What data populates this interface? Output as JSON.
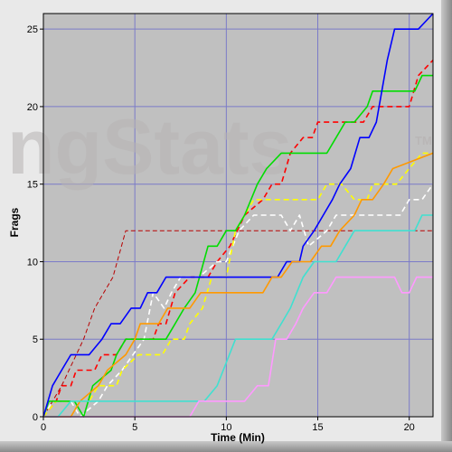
{
  "chart_data": {
    "type": "line",
    "watermark": "ngStats",
    "watermark_tm": "TM",
    "xlabel": "Time (Min)",
    "ylabel": "Frags",
    "xlim": [
      0,
      21.3
    ],
    "ylim": [
      0,
      26
    ],
    "xticks": [
      0,
      5,
      10,
      15,
      20
    ],
    "yticks": [
      0,
      5,
      10,
      15,
      20,
      25
    ],
    "grid": true,
    "background": "#c0c0c0",
    "grid_color": "#7b7bc8",
    "series": [
      {
        "color": "#ff0000",
        "dashed": true,
        "points": [
          [
            0,
            0
          ],
          [
            0.7,
            1
          ],
          [
            1,
            2
          ],
          [
            1.5,
            2
          ],
          [
            1.8,
            3
          ],
          [
            2.8,
            3
          ],
          [
            3.2,
            4
          ],
          [
            4,
            4
          ],
          [
            4.5,
            5
          ],
          [
            6,
            5
          ],
          [
            6.3,
            6
          ],
          [
            6.7,
            6
          ],
          [
            7.2,
            8
          ],
          [
            8,
            9
          ],
          [
            9,
            9
          ],
          [
            9.5,
            10
          ],
          [
            10.2,
            11
          ],
          [
            11,
            13
          ],
          [
            12,
            14
          ],
          [
            12.5,
            15
          ],
          [
            13,
            15
          ],
          [
            13.5,
            17
          ],
          [
            14.2,
            18
          ],
          [
            14.7,
            18
          ],
          [
            15,
            19
          ],
          [
            17.5,
            19
          ],
          [
            18,
            20
          ],
          [
            20,
            20
          ],
          [
            20.5,
            22
          ],
          [
            21.3,
            23
          ]
        ]
      },
      {
        "color": "#b80000",
        "dashed": true,
        "thin": true,
        "points": [
          [
            0,
            0
          ],
          [
            0.5,
            1
          ],
          [
            1,
            2
          ],
          [
            2.2,
            5
          ],
          [
            2.8,
            7
          ],
          [
            3.8,
            9
          ],
          [
            4.5,
            12
          ],
          [
            21.3,
            12
          ]
        ]
      },
      {
        "color": "#ffffff",
        "dashed": true,
        "points": [
          [
            0,
            0
          ],
          [
            0.5,
            1
          ],
          [
            1.5,
            1
          ],
          [
            2,
            0
          ],
          [
            3,
            1
          ],
          [
            3.5,
            2
          ],
          [
            4.3,
            3
          ],
          [
            5.5,
            5
          ],
          [
            6,
            8
          ],
          [
            6.6,
            7
          ],
          [
            7,
            8
          ],
          [
            7.5,
            9
          ],
          [
            8.5,
            9
          ],
          [
            9.5,
            10
          ],
          [
            10,
            10
          ],
          [
            10.7,
            12
          ],
          [
            11.5,
            13
          ],
          [
            13,
            13
          ],
          [
            13.5,
            12
          ],
          [
            14,
            13
          ],
          [
            14.5,
            11
          ],
          [
            15.5,
            12
          ],
          [
            16,
            13
          ],
          [
            17,
            13
          ],
          [
            19.5,
            13
          ],
          [
            20,
            14
          ],
          [
            20.7,
            14
          ],
          [
            21.3,
            15
          ]
        ]
      },
      {
        "color": "#ffff00",
        "dashed": true,
        "points": [
          [
            0,
            0
          ],
          [
            0.7,
            1
          ],
          [
            1.7,
            1
          ],
          [
            2.5,
            1
          ],
          [
            3,
            2
          ],
          [
            4,
            2
          ],
          [
            4.3,
            3
          ],
          [
            5.2,
            4
          ],
          [
            6.5,
            4
          ],
          [
            7,
            5
          ],
          [
            7.7,
            5
          ],
          [
            8,
            6
          ],
          [
            8.7,
            7
          ],
          [
            9.2,
            9
          ],
          [
            10,
            9
          ],
          [
            10.5,
            12
          ],
          [
            11,
            13
          ],
          [
            11.5,
            14
          ],
          [
            15,
            14
          ],
          [
            15.5,
            15
          ],
          [
            16.3,
            15
          ],
          [
            17,
            14
          ],
          [
            17.7,
            14
          ],
          [
            18,
            15
          ],
          [
            19.3,
            15
          ],
          [
            20,
            16
          ],
          [
            20.7,
            17
          ],
          [
            21.3,
            17
          ]
        ]
      },
      {
        "color": "#00dd00",
        "dashed": false,
        "points": [
          [
            0,
            0
          ],
          [
            0.3,
            1
          ],
          [
            1.7,
            1
          ],
          [
            2.2,
            0
          ],
          [
            2.7,
            2
          ],
          [
            3.7,
            3
          ],
          [
            4,
            4
          ],
          [
            4.5,
            5
          ],
          [
            6.7,
            5
          ],
          [
            7.2,
            6
          ],
          [
            7.7,
            7
          ],
          [
            8.3,
            8
          ],
          [
            9,
            11
          ],
          [
            9.5,
            11
          ],
          [
            10,
            12
          ],
          [
            10.5,
            12
          ],
          [
            11,
            13
          ],
          [
            11.7,
            15
          ],
          [
            12.2,
            16
          ],
          [
            13,
            17
          ],
          [
            15.5,
            17
          ],
          [
            16,
            18
          ],
          [
            16.5,
            19
          ],
          [
            17,
            19
          ],
          [
            17.7,
            20
          ],
          [
            18,
            21
          ],
          [
            20.3,
            21
          ],
          [
            20.7,
            22
          ],
          [
            21.3,
            22
          ]
        ]
      },
      {
        "color": "#0000ff",
        "dashed": false,
        "points": [
          [
            0,
            0
          ],
          [
            0.5,
            2
          ],
          [
            1,
            3
          ],
          [
            1.5,
            4
          ],
          [
            2.5,
            4
          ],
          [
            3.2,
            5
          ],
          [
            3.7,
            6
          ],
          [
            4.2,
            6
          ],
          [
            4.8,
            7
          ],
          [
            5.3,
            7
          ],
          [
            5.7,
            8
          ],
          [
            6.2,
            8
          ],
          [
            6.7,
            9
          ],
          [
            12.8,
            9
          ],
          [
            13.3,
            10
          ],
          [
            14,
            10
          ],
          [
            14.2,
            11
          ],
          [
            14.8,
            12
          ],
          [
            15.3,
            13
          ],
          [
            15.8,
            14
          ],
          [
            16.2,
            15
          ],
          [
            16.8,
            16
          ],
          [
            17.3,
            18
          ],
          [
            17.8,
            18
          ],
          [
            18.2,
            19
          ],
          [
            18.8,
            23
          ],
          [
            19.2,
            25
          ],
          [
            20.5,
            25
          ],
          [
            21.3,
            26
          ]
        ]
      },
      {
        "color": "#ff9900",
        "dashed": false,
        "points": [
          [
            0,
            0
          ],
          [
            1.5,
            0
          ],
          [
            2,
            1
          ],
          [
            3,
            2
          ],
          [
            3.5,
            3
          ],
          [
            4.5,
            4
          ],
          [
            5,
            5
          ],
          [
            5.3,
            6
          ],
          [
            6.3,
            6
          ],
          [
            6.8,
            7
          ],
          [
            8,
            7
          ],
          [
            8.6,
            8
          ],
          [
            12,
            8
          ],
          [
            12.5,
            9
          ],
          [
            13,
            9
          ],
          [
            13.6,
            10
          ],
          [
            14.6,
            10
          ],
          [
            15.2,
            11
          ],
          [
            15.7,
            11
          ],
          [
            16.2,
            12
          ],
          [
            17,
            13
          ],
          [
            17.4,
            14
          ],
          [
            18,
            14
          ],
          [
            18.6,
            15
          ],
          [
            19.1,
            16
          ],
          [
            21.3,
            17
          ]
        ]
      },
      {
        "color": "#40e0d0",
        "dashed": false,
        "points": [
          [
            0,
            0
          ],
          [
            0.8,
            0
          ],
          [
            1.5,
            1
          ],
          [
            8.8,
            1
          ],
          [
            9.5,
            2
          ],
          [
            10.5,
            5
          ],
          [
            12.5,
            5
          ],
          [
            13,
            6
          ],
          [
            13.5,
            7
          ],
          [
            14.2,
            9
          ],
          [
            14.8,
            10
          ],
          [
            16,
            10
          ],
          [
            16.5,
            11
          ],
          [
            17,
            12
          ],
          [
            20.3,
            12
          ],
          [
            20.7,
            13
          ],
          [
            21.3,
            13
          ]
        ]
      },
      {
        "color": "#ff99ff",
        "dashed": false,
        "points": [
          [
            0,
            0
          ],
          [
            8,
            0
          ],
          [
            8.5,
            1
          ],
          [
            11,
            1
          ],
          [
            11.7,
            2
          ],
          [
            12.3,
            2
          ],
          [
            12.7,
            5
          ],
          [
            13.3,
            5
          ],
          [
            13.8,
            6
          ],
          [
            14.2,
            7
          ],
          [
            14.8,
            8
          ],
          [
            15.5,
            8
          ],
          [
            16,
            9
          ],
          [
            19.2,
            9
          ],
          [
            19.6,
            8
          ],
          [
            20,
            8
          ],
          [
            20.4,
            9
          ],
          [
            21.3,
            9
          ]
        ]
      }
    ]
  }
}
